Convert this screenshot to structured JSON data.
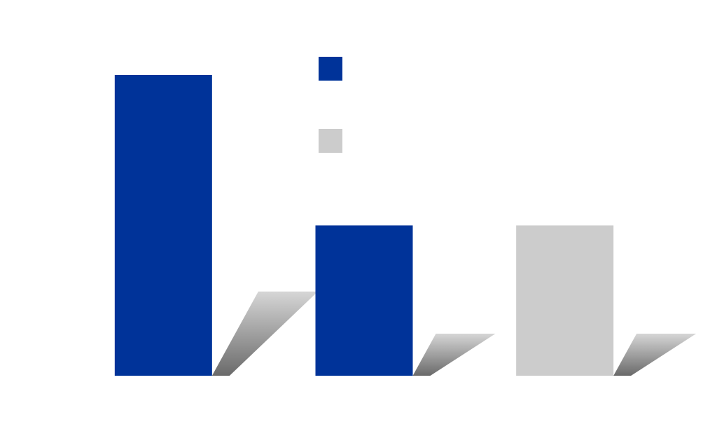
{
  "chart_data": {
    "type": "bar",
    "categories": [
      null,
      null,
      null
    ],
    "series": [
      {
        "color": "#003399",
        "values": [
          100,
          50,
          null
        ]
      },
      {
        "color": "#cccccc",
        "values": [
          null,
          null,
          50
        ]
      }
    ]
  }
}
